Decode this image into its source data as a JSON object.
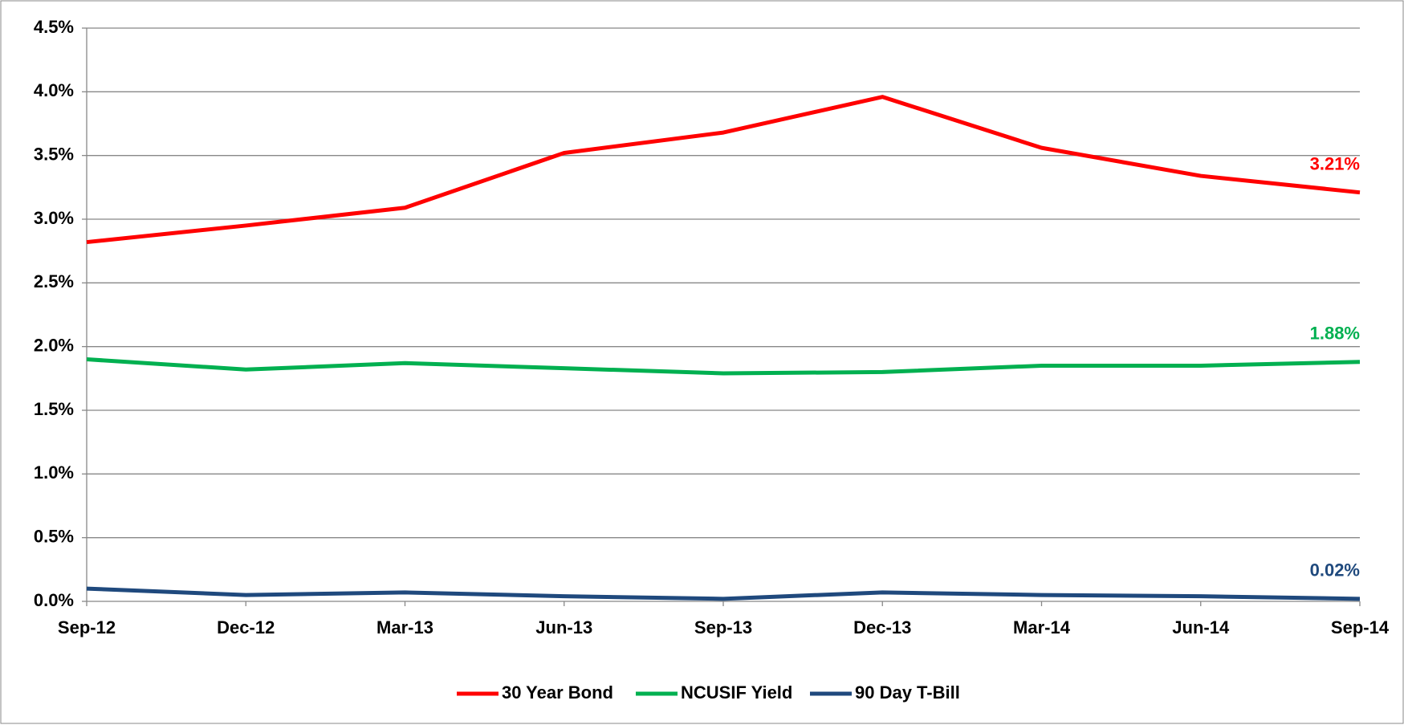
{
  "chart_data": {
    "type": "line",
    "categories": [
      "Sep-12",
      "Dec-12",
      "Mar-13",
      "Jun-13",
      "Sep-13",
      "Dec-13",
      "Mar-14",
      "Jun-14",
      "Sep-14"
    ],
    "series": [
      {
        "name": "30 Year Bond",
        "color": "#ff0000",
        "values": [
          2.82,
          2.95,
          3.09,
          3.52,
          3.68,
          3.96,
          3.56,
          3.34,
          3.21
        ],
        "value_labels": [
          null,
          null,
          null,
          null,
          null,
          null,
          null,
          null,
          "3.21%"
        ]
      },
      {
        "name": "NCUSIF Yield",
        "color": "#00b050",
        "values": [
          1.9,
          1.82,
          1.87,
          1.83,
          1.79,
          1.8,
          1.85,
          1.85,
          1.88
        ],
        "value_labels": [
          null,
          null,
          null,
          null,
          null,
          null,
          null,
          null,
          "1.88%"
        ]
      },
      {
        "name": "90 Day T-Bill",
        "color": "#1f497d",
        "values": [
          0.1,
          0.05,
          0.07,
          0.04,
          0.02,
          0.07,
          0.05,
          0.04,
          0.02
        ],
        "value_labels": [
          null,
          null,
          null,
          null,
          null,
          null,
          null,
          null,
          "0.02%"
        ]
      }
    ],
    "ylim": [
      0,
      4.5
    ],
    "yticks": [
      {
        "value": 0,
        "label": "0.0%"
      },
      {
        "value": 0.5,
        "label": "0.5%"
      },
      {
        "value": 1,
        "label": "1.0%"
      },
      {
        "value": 1.5,
        "label": "1.5%"
      },
      {
        "value": 2,
        "label": "2.0%"
      },
      {
        "value": 2.5,
        "label": "2.5%"
      },
      {
        "value": 3,
        "label": "3.0%"
      },
      {
        "value": 3.5,
        "label": "3.5%"
      },
      {
        "value": 4,
        "label": "4.0%"
      },
      {
        "value": 4.5,
        "label": "4.5%"
      }
    ],
    "grid": true,
    "legend": "bottom"
  }
}
